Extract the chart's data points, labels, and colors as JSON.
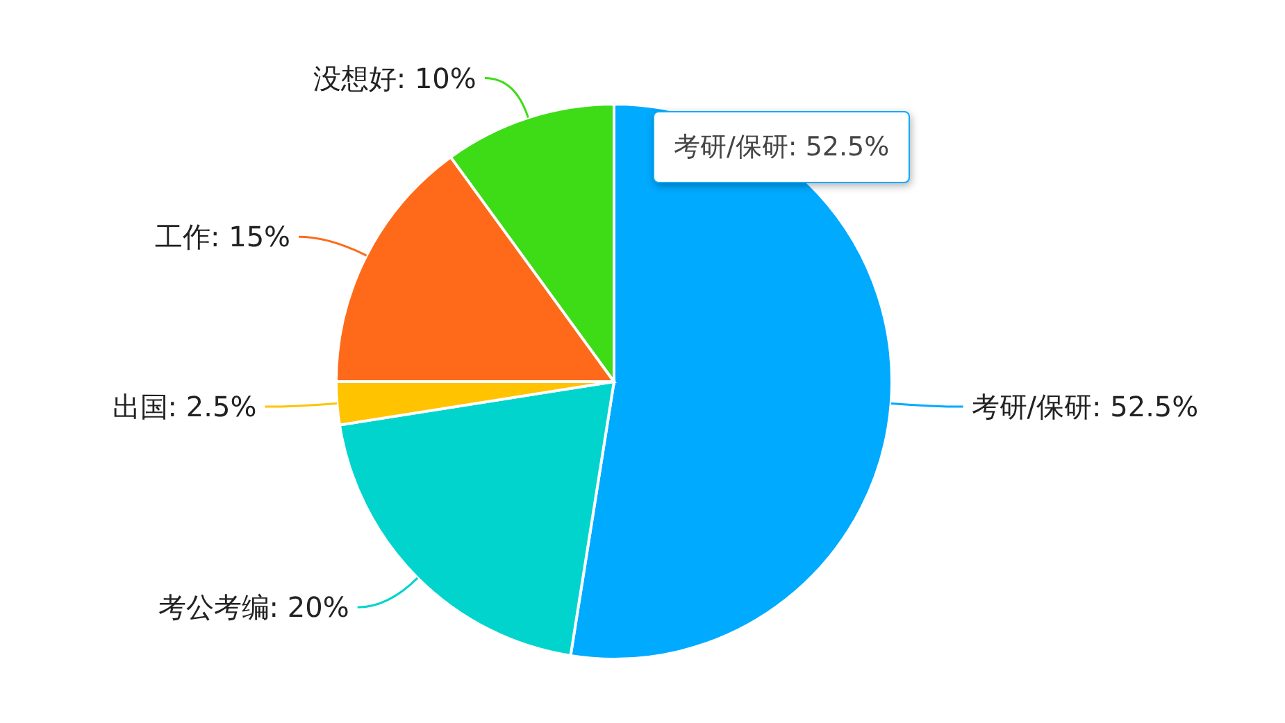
{
  "chart_data": {
    "type": "pie",
    "categories": [
      "考研/保研",
      "考公考编",
      "出国",
      "工作",
      "没想好"
    ],
    "values": [
      52.5,
      20,
      2.5,
      15,
      10
    ],
    "value_labels": [
      "52.5%",
      "20%",
      "2.5%",
      "15%",
      "10%"
    ],
    "colors": [
      "#00aaff",
      "#00d4cc",
      "#ffc300",
      "#ff6a1a",
      "#3ddc17"
    ],
    "annotations": [
      "考研/保研: 52.5%"
    ]
  }
}
